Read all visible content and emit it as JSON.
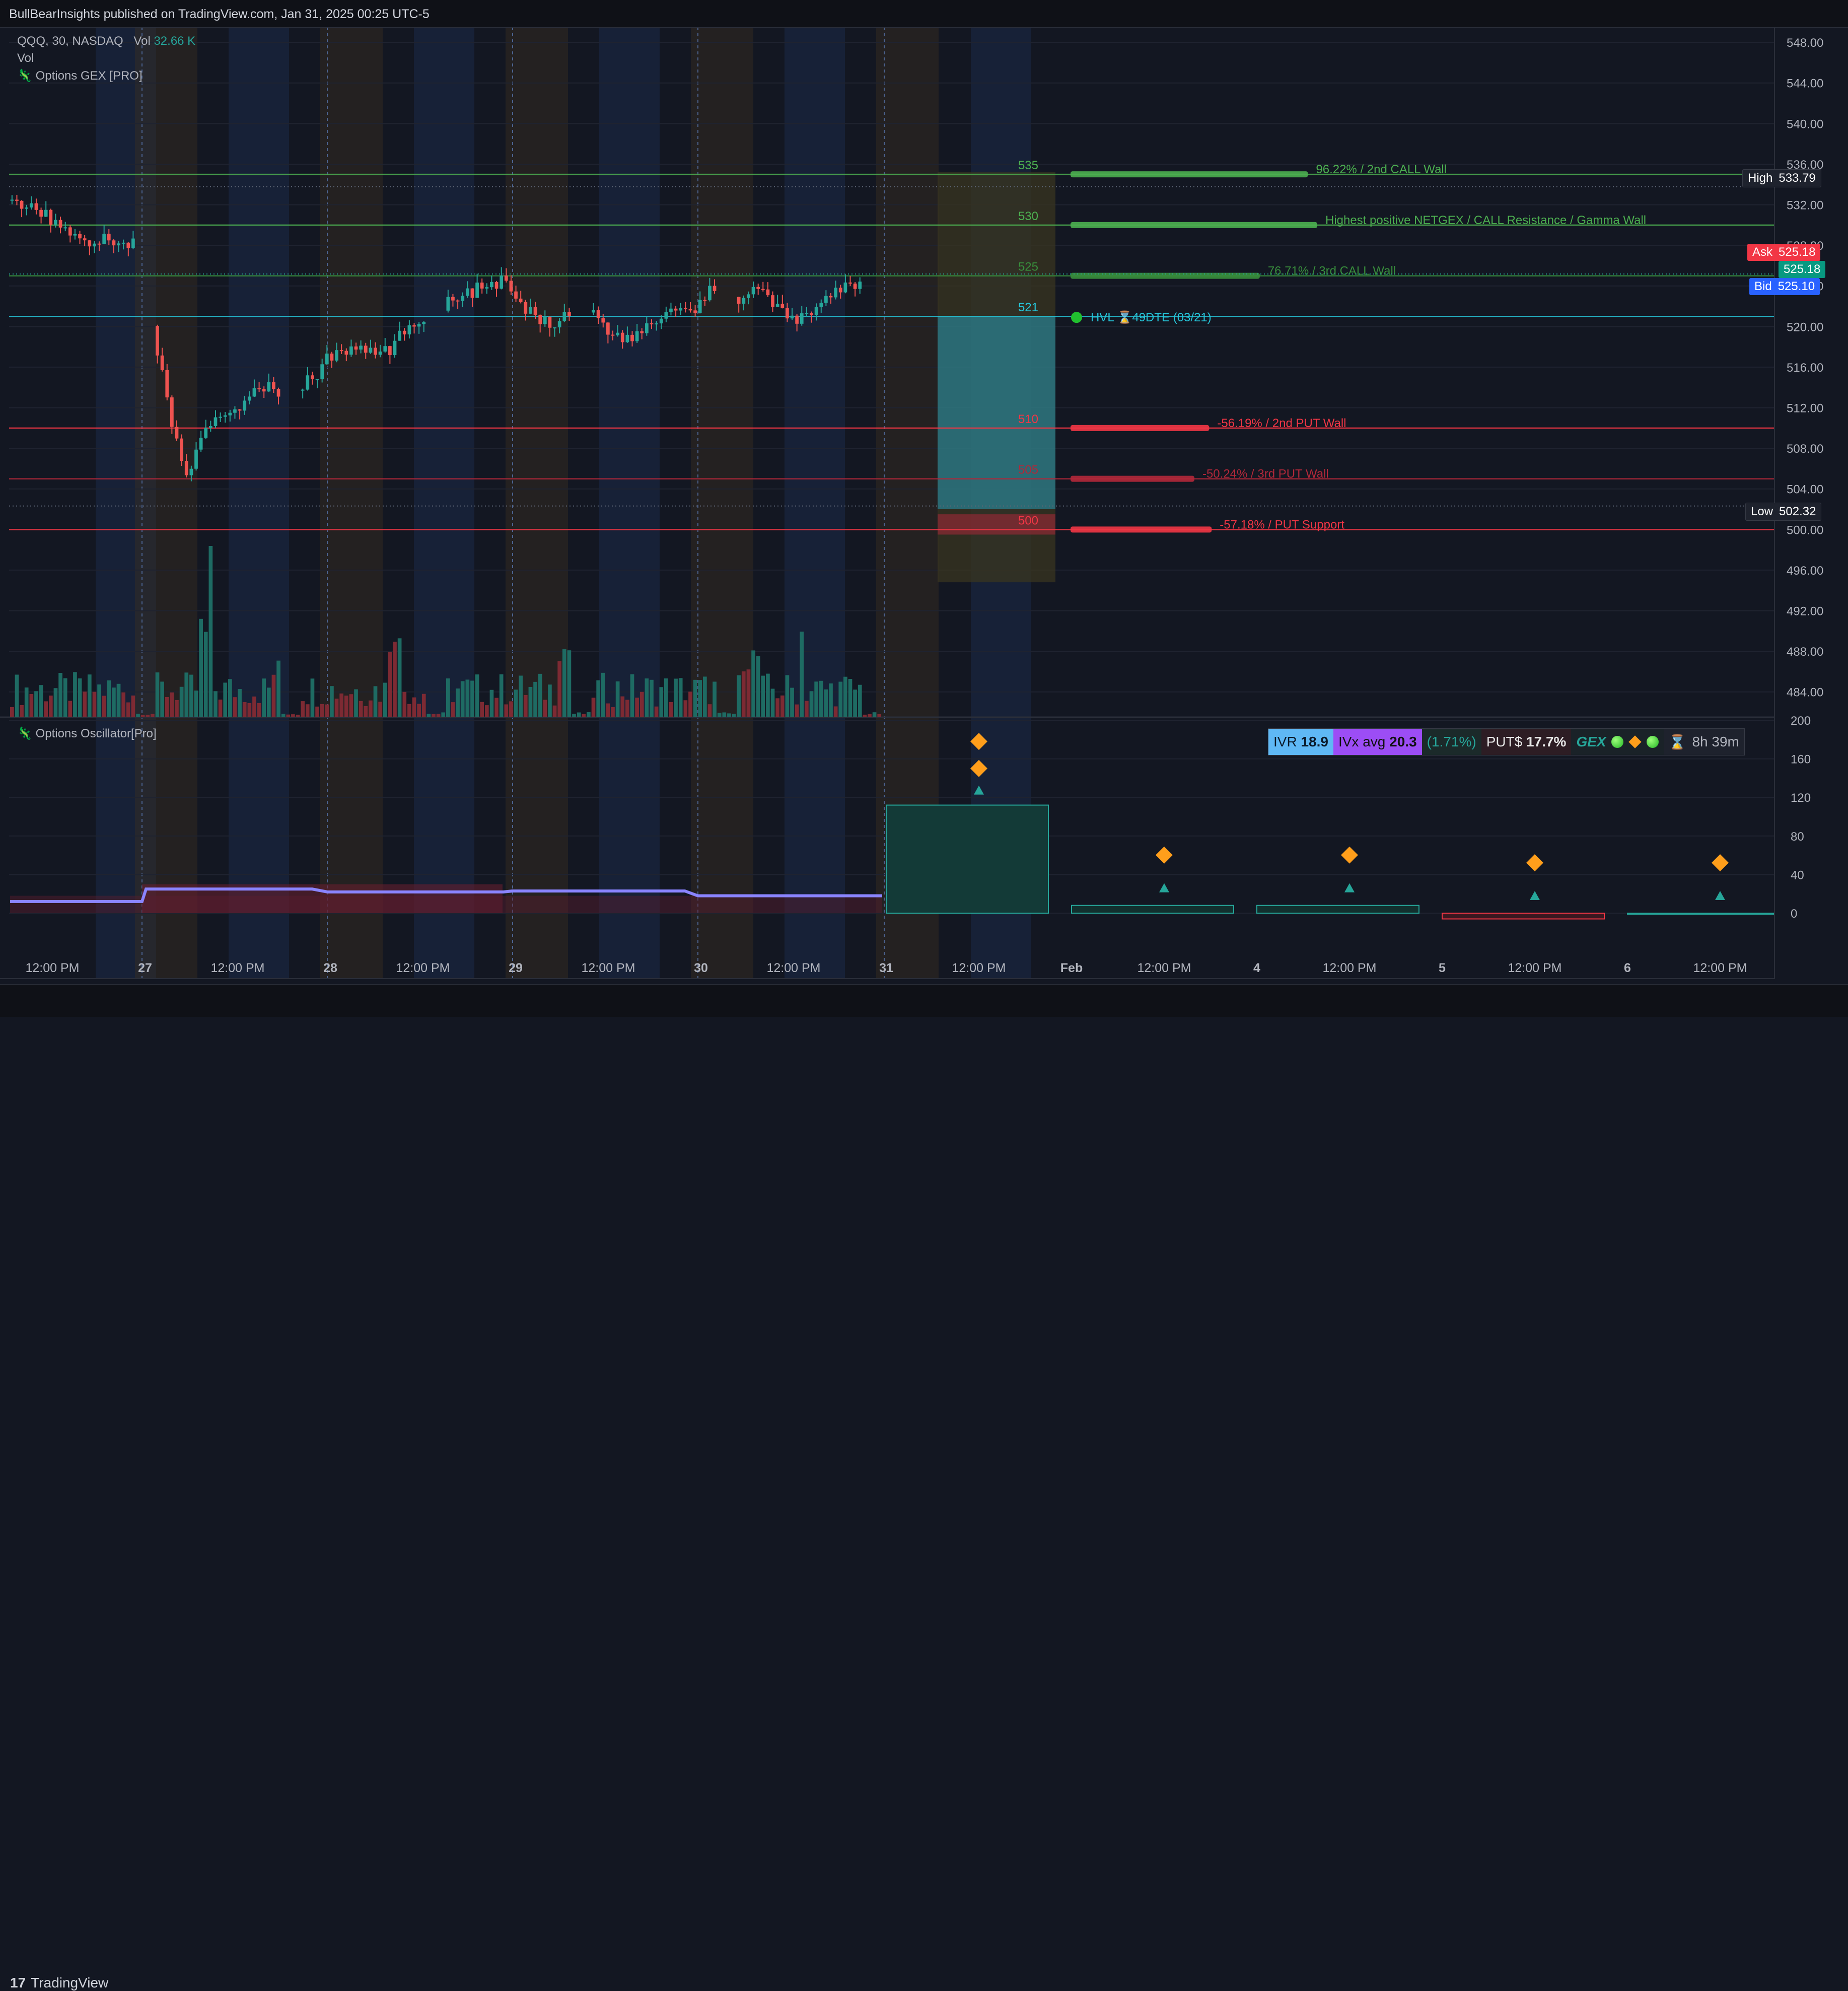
{
  "header": {
    "publish_text": "BullBearInsights published on TradingView.com, Jan 31, 2025 00:25 UTC-5"
  },
  "legend": {
    "symbol_line": "QQQ, 30, NASDAQ",
    "vol_label": "Vol",
    "vol_value": "32.66 K",
    "vol_line2": "Vol",
    "indicator_main": "Options GEX [PRO]",
    "indicator_osc": "Options Oscillator[Pro]"
  },
  "footer": {
    "brand": "TradingView"
  },
  "price_scale": {
    "labels": [
      "548.00",
      "544.00",
      "540.00",
      "536.00",
      "532.00",
      "528.00",
      "524.00",
      "520.00",
      "516.00",
      "512.00",
      "508.00",
      "504.00",
      "500.00",
      "496.00",
      "492.00",
      "488.00",
      "484.00"
    ],
    "high_label": "High",
    "high_value": "533.79",
    "ask_label": "Ask",
    "ask_value": "525.18",
    "last_value": "525.18",
    "bid_label": "Bid",
    "bid_value": "525.10",
    "low_label": "Low",
    "low_value": "502.32"
  },
  "osc_scale": {
    "labels": [
      "200",
      "160",
      "120",
      "80",
      "40",
      "0"
    ]
  },
  "time_axis": {
    "labels": [
      "12:00 PM",
      "27",
      "12:00 PM",
      "28",
      "12:00 PM",
      "29",
      "12:00 PM",
      "30",
      "12:00 PM",
      "31",
      "12:00 PM",
      "Feb",
      "12:00 PM",
      "4",
      "12:00 PM",
      "5",
      "12:00 PM",
      "6",
      "12:00 PM"
    ]
  },
  "levels": [
    {
      "strike": "535",
      "price": 535,
      "desc": "96.22% / 2nd CALL Wall",
      "color": "#4caf50",
      "bar_pct": 0.962
    },
    {
      "strike": "530",
      "price": 530,
      "desc": "Highest positive NETGEX / CALL Resistance / Gamma Wall",
      "color": "#4caf50",
      "bar_pct": 1.0
    },
    {
      "strike": "525",
      "price": 525,
      "desc": "76.71% / 3rd CALL Wall",
      "color": "#388e3c",
      "bar_pct": 0.767
    },
    {
      "strike": "521",
      "price": 521,
      "desc": "HVL ⌛49DTE (03/21)",
      "color": "#26c6da",
      "bar_pct": 0
    },
    {
      "strike": "510",
      "price": 510,
      "desc": "-56.19% / 2nd PUT Wall",
      "color": "#f23645",
      "bar_pct": 0.562
    },
    {
      "strike": "505",
      "price": 505,
      "desc": "-50.24% / 3rd PUT Wall",
      "color": "#b2283a",
      "bar_pct": 0.502
    },
    {
      "strike": "500",
      "price": 500,
      "desc": "-57.18% / PUT Support",
      "color": "#f23645",
      "bar_pct": 0.572
    }
  ],
  "metrics": {
    "ivr_label": "IVR",
    "ivr_value": "18.9",
    "ivx_label": "IVx avg",
    "ivx_value": "20.3",
    "pct": "(1.71%)",
    "put_label": "PUT$",
    "put_value": "17.7%",
    "gex_label": "GEX",
    "timer": "8h 39m"
  },
  "chart_data": {
    "type": "candlestick",
    "title": "QQQ, 30, NASDAQ",
    "ylim": [
      482,
      549
    ],
    "osc_ylim": [
      0,
      200
    ],
    "close_series_approx": [
      532.5,
      532,
      531,
      530,
      529,
      528.5,
      528.5,
      528.5,
      528,
      519,
      511,
      505,
      509,
      511,
      512,
      513,
      514,
      513.5,
      514,
      515,
      517,
      517.5,
      518,
      517,
      518,
      520,
      521,
      522,
      523,
      523.5,
      524,
      524.5,
      522,
      521,
      520.5,
      521,
      522,
      521,
      519,
      518.5,
      520,
      521,
      522,
      521,
      523.5,
      522.5,
      523,
      524,
      522,
      520.5,
      521,
      522.5,
      523.5,
      524,
      525,
      525.18
    ],
    "osc_bars": [
      {
        "label": "31",
        "value": 112
      },
      {
        "label": "Feb",
        "value": 8
      },
      {
        "label": "4",
        "value": 8
      },
      {
        "label": "5",
        "value": -6
      },
      {
        "label": "6",
        "value": 0
      }
    ],
    "osc_line_value": 18
  }
}
